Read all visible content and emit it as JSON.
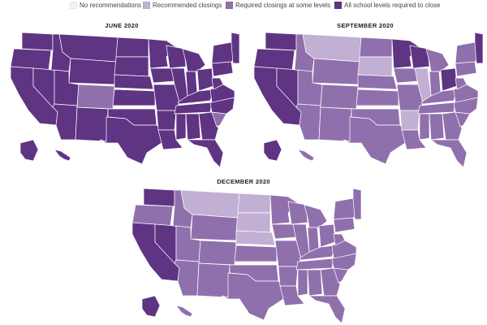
{
  "legend": [
    {
      "key": "none",
      "label": "No recommendations",
      "color": "#f6f1f8"
    },
    {
      "key": "rec",
      "label": "Recommended closings",
      "color": "#c1b0d3"
    },
    {
      "key": "some",
      "label": "Required closings at some levels",
      "color": "#8f70ac"
    },
    {
      "key": "all",
      "label": "All school levels required to close",
      "color": "#5e3483"
    }
  ],
  "maps": [
    {
      "title": "JUNE 2020",
      "states": {
        "WA": "all",
        "OR": "all",
        "CA": "all",
        "NV": "all",
        "ID": "all",
        "MT": "all",
        "WY": "all",
        "UT": "all",
        "AZ": "all",
        "CO": "some",
        "NM": "all",
        "ND": "all",
        "SD": "all",
        "NE": "all",
        "KS": "all",
        "OK": "all",
        "TX": "all",
        "MN": "all",
        "IA": "all",
        "MO": "all",
        "AR": "all",
        "LA": "all",
        "WI": "all",
        "IL": "all",
        "MI": "all",
        "IN": "all",
        "OH": "all",
        "KY": "all",
        "TN": "all",
        "MS": "all",
        "AL": "all",
        "GA": "all",
        "FL": "all",
        "SC": "some",
        "NC": "all",
        "VA": "all",
        "WV": "all",
        "PA": "all",
        "NY": "all",
        "NE6": "all",
        "AK": "all",
        "HI": "all"
      }
    },
    {
      "title": "SEPTEMBER 2020",
      "states": {
        "WA": "all",
        "OR": "all",
        "CA": "all",
        "NV": "all",
        "ID": "some",
        "MT": "rec",
        "WY": "some",
        "UT": "some",
        "AZ": "some",
        "CO": "some",
        "NM": "some",
        "ND": "some",
        "SD": "rec",
        "NE": "some",
        "KS": "some",
        "OK": "some",
        "TX": "some",
        "MN": "all",
        "IA": "some",
        "MO": "some",
        "AR": "rec",
        "LA": "some",
        "WI": "all",
        "IL": "rec",
        "MI": "some",
        "IN": "some",
        "OH": "all",
        "KY": "some",
        "TN": "some",
        "MS": "some",
        "AL": "some",
        "GA": "some",
        "FL": "some",
        "SC": "some",
        "NC": "some",
        "VA": "some",
        "WV": "some",
        "PA": "some",
        "NY": "some",
        "NE6": "all",
        "AK": "all",
        "HI": "some"
      }
    },
    {
      "title": "DECEMBER 2020",
      "states": {
        "WA": "all",
        "OR": "some",
        "CA": "all",
        "NV": "all",
        "ID": "some",
        "MT": "rec",
        "WY": "some",
        "UT": "some",
        "AZ": "some",
        "CO": "some",
        "NM": "some",
        "ND": "rec",
        "SD": "rec",
        "NE": "rec",
        "KS": "some",
        "OK": "some",
        "TX": "some",
        "MN": "some",
        "IA": "some",
        "MO": "some",
        "AR": "some",
        "LA": "some",
        "WI": "some",
        "IL": "some",
        "MI": "some",
        "IN": "some",
        "OH": "some",
        "KY": "some",
        "TN": "some",
        "MS": "some",
        "AL": "some",
        "GA": "some",
        "FL": "some",
        "SC": "some",
        "NC": "some",
        "VA": "some",
        "WV": "some",
        "PA": "some",
        "NY": "some",
        "NE6": "some",
        "AK": "all",
        "HI": "some"
      }
    }
  ]
}
